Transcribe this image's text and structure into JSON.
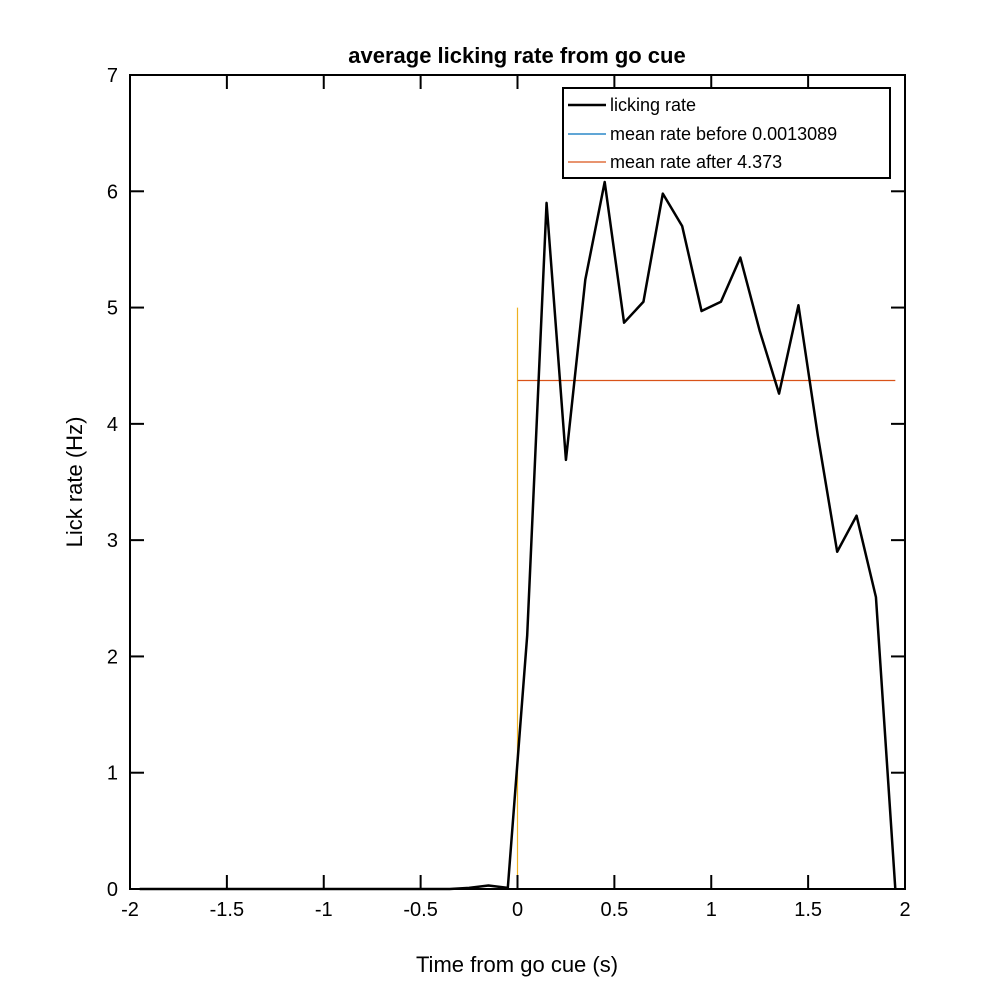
{
  "chart_data": {
    "type": "line",
    "title": "average licking rate from go cue",
    "xlabel": "Time from go cue (s)",
    "ylabel": "Lick rate (Hz)",
    "xlim": [
      -2,
      2
    ],
    "ylim": [
      0,
      7
    ],
    "xticks": [
      -2,
      -1.5,
      -1,
      -0.5,
      0,
      0.5,
      1,
      1.5,
      2
    ],
    "xtick_labels": [
      "-2",
      "-1.5",
      "-1",
      "-0.5",
      "0",
      "0.5",
      "1",
      "1.5",
      "2"
    ],
    "yticks": [
      0,
      1,
      2,
      3,
      4,
      5,
      6,
      7
    ],
    "ytick_labels": [
      "0",
      "1",
      "2",
      "3",
      "4",
      "5",
      "6",
      "7"
    ],
    "grid": false,
    "legend_position": "top-right",
    "series": [
      {
        "name": "licking rate",
        "color": "#000000",
        "x": [
          -1.95,
          -1.85,
          -1.75,
          -1.65,
          -1.55,
          -1.45,
          -1.35,
          -1.25,
          -1.15,
          -1.05,
          -0.95,
          -0.85,
          -0.75,
          -0.65,
          -0.55,
          -0.45,
          -0.35,
          -0.25,
          -0.15,
          -0.05,
          0.05,
          0.15,
          0.25,
          0.35,
          0.45,
          0.55,
          0.65,
          0.75,
          0.85,
          0.95,
          1.05,
          1.15,
          1.25,
          1.35,
          1.45,
          1.55,
          1.65,
          1.75,
          1.85,
          1.95
        ],
        "y": [
          0,
          0,
          0,
          0,
          0,
          0,
          0,
          0,
          0,
          0,
          0,
          0,
          0,
          0,
          0,
          0,
          0,
          0.01,
          0.03,
          0.01,
          2.18,
          5.9,
          3.69,
          5.24,
          6.08,
          4.87,
          5.05,
          5.98,
          5.7,
          4.97,
          5.05,
          5.43,
          4.8,
          4.26,
          5.02,
          3.9,
          2.9,
          3.21,
          2.51,
          0
        ]
      },
      {
        "name": "mean rate before 0.0013089",
        "color": "#0072BD",
        "x": [
          -2,
          0
        ],
        "y": [
          0.0013089,
          0.0013089
        ]
      },
      {
        "name": "mean rate after 4.373",
        "color": "#D95319",
        "x": [
          0,
          1.95
        ],
        "y": [
          4.373,
          4.373
        ]
      },
      {
        "color": "#EDB120",
        "x": [
          0,
          0
        ],
        "y": [
          0,
          5
        ]
      }
    ]
  }
}
